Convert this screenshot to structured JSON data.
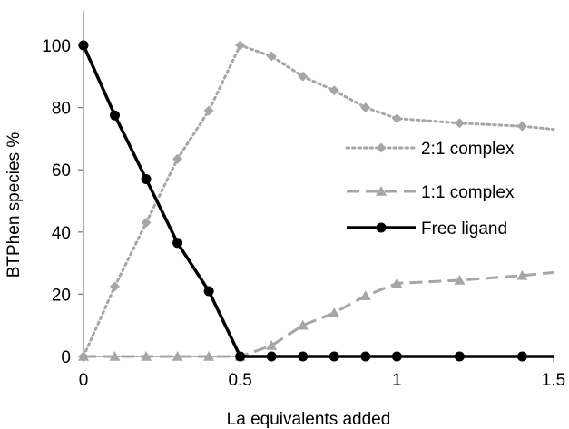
{
  "chart_data": {
    "type": "line",
    "xlabel": "La equivalents added",
    "ylabel": "BTPhen species  %",
    "xlim": [
      0,
      1.5
    ],
    "ylim": [
      0,
      100
    ],
    "xticks": [
      "0",
      "0.5",
      "1",
      "1.5"
    ],
    "yticks": [
      "0",
      "20",
      "40",
      "60",
      "80",
      "100"
    ],
    "grid": false,
    "legend_position": "right",
    "series": [
      {
        "name": "2:1 complex",
        "style": "dotted",
        "marker": "diamond",
        "color": "#a6a6a6",
        "x": [
          0,
          0.1,
          0.2,
          0.3,
          0.4,
          0.5,
          0.6,
          0.7,
          0.8,
          0.9,
          1.0,
          1.2,
          1.4,
          1.5
        ],
        "y": [
          0,
          22.5,
          43,
          63.5,
          79,
          100,
          96.5,
          90,
          85.5,
          80,
          76.5,
          75,
          74,
          73
        ]
      },
      {
        "name": "1:1 complex",
        "style": "dashed",
        "marker": "triangle",
        "color": "#a6a6a6",
        "x": [
          0,
          0.1,
          0.2,
          0.3,
          0.4,
          0.5,
          0.6,
          0.7,
          0.8,
          0.9,
          1.0,
          1.2,
          1.4,
          1.5
        ],
        "y": [
          0,
          0,
          0,
          0,
          0,
          0,
          3.5,
          10,
          14,
          19.5,
          23.5,
          24.5,
          26,
          27
        ]
      },
      {
        "name": "Free ligand",
        "style": "solid",
        "marker": "circle",
        "color": "#000000",
        "x": [
          0,
          0.1,
          0.2,
          0.3,
          0.4,
          0.5,
          0.6,
          0.7,
          0.8,
          0.9,
          1.0,
          1.2,
          1.4,
          1.5
        ],
        "y": [
          100,
          77.5,
          57,
          36.5,
          21,
          0,
          0,
          0,
          0,
          0,
          0,
          0,
          0,
          0
        ]
      }
    ]
  }
}
